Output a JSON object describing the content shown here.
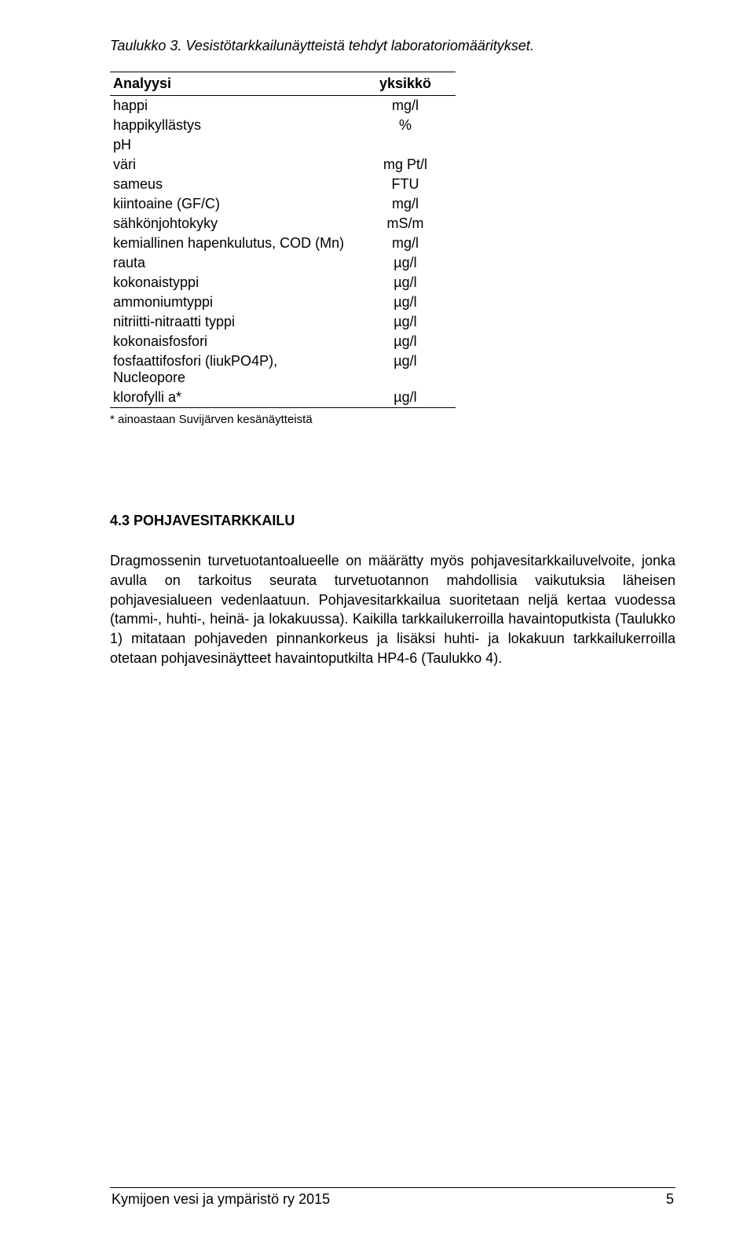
{
  "caption": "Taulukko 3. Vesistötarkkailunäytteistä tehdyt laboratoriomääritykset.",
  "table": {
    "headers": {
      "analysis": "Analyysi",
      "unit": "yksikkö"
    },
    "rows": [
      {
        "analysis": "happi",
        "unit": "mg/l"
      },
      {
        "analysis": "happikyllästys",
        "unit": "%"
      },
      {
        "analysis": "pH",
        "unit": ""
      },
      {
        "analysis": "väri",
        "unit": "mg Pt/l"
      },
      {
        "analysis": "sameus",
        "unit": "FTU"
      },
      {
        "analysis": "kiintoaine (GF/C)",
        "unit": "mg/l"
      },
      {
        "analysis": "sähkönjohtokyky",
        "unit": "mS/m"
      },
      {
        "analysis": "kemiallinen hapenkulutus, COD (Mn)",
        "unit": "mg/l"
      },
      {
        "analysis": "rauta",
        "unit": "µg/l"
      },
      {
        "analysis": "kokonaistyppi",
        "unit": "µg/l"
      },
      {
        "analysis": "ammoniumtyppi",
        "unit": "µg/l"
      },
      {
        "analysis": "nitriitti-nitraatti typpi",
        "unit": "µg/l"
      },
      {
        "analysis": "kokonaisfosfori",
        "unit": "µg/l"
      },
      {
        "analysis": "fosfaattifosfori (liukPO4P), Nucleopore",
        "unit": "µg/l"
      },
      {
        "analysis": "klorofylli a*",
        "unit": "µg/l"
      }
    ]
  },
  "footnote": "* ainoastaan Suvijärven kesänäytteistä",
  "section": {
    "number": "4.3",
    "title": "POHJAVESITARKKAILU"
  },
  "paragraph": "Dragmossenin turvetuotantoalueelle on määrätty myös pohjavesitarkkailuvelvoite, jonka avulla on tarkoitus seurata turvetuotannon mahdollisia vaikutuksia läheisen pohjavesialueen vedenlaatuun. Pohjavesitarkkailua suoritetaan neljä kertaa vuodessa (tammi-, huhti-, heinä- ja lokakuussa). Kaikilla tarkkailukerroilla havaintoputkista (Taulukko 1) mitataan pohjaveden pinnankorkeus ja lisäksi huhti- ja lokakuun tarkkailukerroilla otetaan pohjavesinäytteet havaintoputkilta HP4-6 (Taulukko 4).",
  "footer": {
    "source": "Kymijoen vesi ja ympäristö ry 2015",
    "page": "5"
  },
  "colors": {
    "text": "#000000",
    "background": "#ffffff",
    "rule": "#000000"
  }
}
